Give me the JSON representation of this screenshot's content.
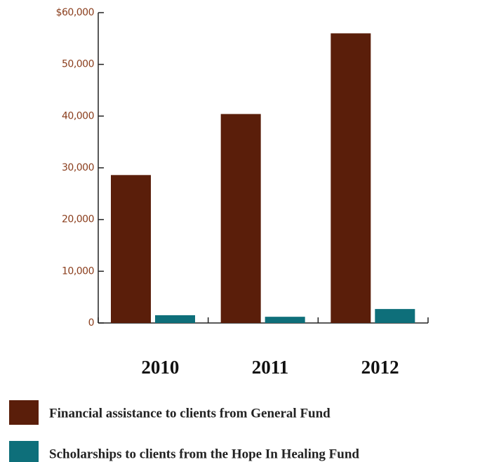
{
  "chart_data": {
    "type": "bar",
    "categories": [
      "2010",
      "2011",
      "2012"
    ],
    "series": [
      {
        "name": "Financial assistance to clients from General Fund",
        "color": "#5a1e0a",
        "values": [
          28600,
          40400,
          56000
        ]
      },
      {
        "name": "Scholarships to clients from the Hope In Healing Fund",
        "color": "#0e6f7a",
        "values": [
          1500,
          1200,
          2700
        ]
      }
    ],
    "ylim": [
      0,
      60000
    ],
    "yticks": [
      0,
      {
        "value": 10000,
        "label": "10,000"
      },
      {
        "value": 20000,
        "label": "20,000"
      },
      {
        "value": 30000,
        "label": "30,000"
      },
      {
        "value": 40000,
        "label": "40,000"
      },
      {
        "value": 50000,
        "label": "50,000"
      },
      {
        "value": 60000,
        "label": "$60,000"
      }
    ]
  }
}
